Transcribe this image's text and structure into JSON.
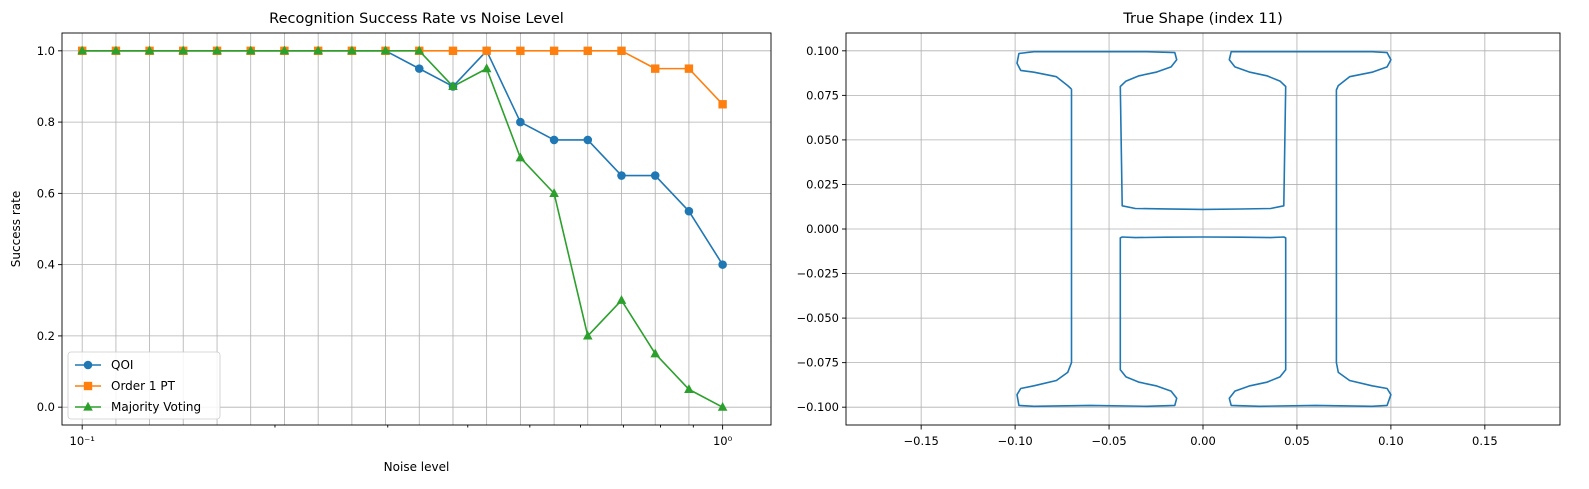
{
  "chart_data": [
    {
      "type": "line",
      "title": "Recognition Success Rate vs Noise Level",
      "xlabel": "Noise level",
      "ylabel": "Success rate",
      "xscale": "log",
      "xlim": [
        0.093,
        1.19
      ],
      "ylim": [
        -0.05,
        1.05
      ],
      "grid": true,
      "legend_position": "lower-left",
      "x": [
        0.1,
        0.1129,
        0.1274,
        0.1438,
        0.1624,
        0.1833,
        0.2069,
        0.2336,
        0.2637,
        0.2976,
        0.336,
        0.3793,
        0.4281,
        0.4833,
        0.5456,
        0.6158,
        0.6952,
        0.7848,
        0.8859,
        1.0
      ],
      "series": [
        {
          "name": "QOI",
          "color": "#1f77b4",
          "marker": "circle",
          "values": [
            1.0,
            1.0,
            1.0,
            1.0,
            1.0,
            1.0,
            1.0,
            1.0,
            1.0,
            1.0,
            0.95,
            0.9,
            1.0,
            0.8,
            0.75,
            0.75,
            0.65,
            0.65,
            0.55,
            0.4
          ]
        },
        {
          "name": "Order 1 PT",
          "color": "#ff7f0e",
          "marker": "square",
          "values": [
            1.0,
            1.0,
            1.0,
            1.0,
            1.0,
            1.0,
            1.0,
            1.0,
            1.0,
            1.0,
            1.0,
            1.0,
            1.0,
            1.0,
            1.0,
            1.0,
            1.0,
            0.95,
            0.95,
            0.85
          ]
        },
        {
          "name": "Majority Voting",
          "color": "#2ca02c",
          "marker": "triangle",
          "values": [
            1.0,
            1.0,
            1.0,
            1.0,
            1.0,
            1.0,
            1.0,
            1.0,
            1.0,
            1.0,
            1.0,
            0.9,
            0.95,
            0.7,
            0.6,
            0.2,
            0.3,
            0.15,
            0.05,
            0.0
          ]
        }
      ],
      "xticks": [
        0.1,
        1.0
      ],
      "xtick_labels": [
        "10⁻¹",
        "10⁰"
      ],
      "yticks": [
        0.0,
        0.2,
        0.4,
        0.6,
        0.8,
        1.0
      ],
      "ytick_labels": [
        "0.0",
        "0.2",
        "0.4",
        "0.6",
        "0.8",
        "1.0"
      ]
    },
    {
      "type": "line",
      "title": "True Shape (index 11)",
      "xlabel": "",
      "ylabel": "",
      "xlim": [
        -0.19,
        0.19
      ],
      "ylim": [
        -0.11,
        0.11
      ],
      "grid": true,
      "xticks": [
        -0.15,
        -0.1,
        -0.05,
        0.0,
        0.05,
        0.1,
        0.15
      ],
      "xtick_labels": [
        "−0.15",
        "−0.10",
        "−0.05",
        "0.00",
        "0.05",
        "0.10",
        "0.15"
      ],
      "yticks": [
        0.1,
        0.075,
        0.05,
        0.025,
        0.0,
        -0.025,
        -0.05,
        -0.075,
        -0.1
      ],
      "ytick_labels": [
        "0.100",
        "0.075",
        "0.050",
        "0.025",
        "0.000",
        "−0.025",
        "−0.050",
        "−0.075",
        "−0.100"
      ],
      "series": [
        {
          "color": "#1f77b4",
          "x": [
            -0.07,
            -0.072,
            -0.078,
            -0.09,
            -0.097,
            -0.099,
            -0.098,
            -0.09,
            -0.06,
            -0.03,
            -0.015,
            -0.014,
            -0.017,
            -0.025,
            -0.034,
            -0.041,
            -0.044,
            -0.043,
            -0.036,
            -0.02,
            0.0,
            0.02,
            0.036,
            0.043,
            0.044,
            0.041,
            0.034,
            0.025,
            0.017,
            0.014,
            0.015,
            0.03,
            0.06,
            0.09,
            0.098,
            0.1,
            0.098,
            0.09,
            0.078,
            0.072,
            0.071,
            0.071,
            0.072,
            0.078,
            0.09,
            0.098,
            0.1,
            0.098,
            0.09,
            0.06,
            0.03,
            0.015,
            0.014,
            0.017,
            0.025,
            0.034,
            0.041,
            0.044,
            0.044,
            0.043,
            0.036,
            0.02,
            0.0,
            -0.02,
            -0.036,
            -0.043,
            -0.044,
            -0.044,
            -0.041,
            -0.034,
            -0.025,
            -0.017,
            -0.014,
            -0.015,
            -0.03,
            -0.06,
            -0.09,
            -0.098,
            -0.099,
            -0.097,
            -0.09,
            -0.078,
            -0.072,
            -0.07,
            -0.07
          ],
          "y": [
            0.0785,
            0.0805,
            0.0855,
            0.088,
            0.089,
            0.093,
            0.0985,
            0.0995,
            0.0995,
            0.0995,
            0.099,
            0.095,
            0.091,
            0.088,
            0.086,
            0.083,
            0.08,
            0.013,
            0.0115,
            0.0113,
            0.011,
            0.0112,
            0.0115,
            0.013,
            0.08,
            0.083,
            0.086,
            0.088,
            0.091,
            0.095,
            0.0995,
            0.0995,
            0.0995,
            0.0995,
            0.099,
            0.095,
            0.091,
            0.088,
            0.0855,
            0.0805,
            0.078,
            -0.075,
            -0.0805,
            -0.085,
            -0.088,
            -0.0895,
            -0.093,
            -0.099,
            -0.0995,
            -0.099,
            -0.0995,
            -0.099,
            -0.095,
            -0.091,
            -0.088,
            -0.086,
            -0.083,
            -0.079,
            -0.005,
            -0.0045,
            -0.0048,
            -0.0046,
            -0.0045,
            -0.0046,
            -0.0048,
            -0.0045,
            -0.005,
            -0.079,
            -0.083,
            -0.086,
            -0.088,
            -0.091,
            -0.095,
            -0.099,
            -0.0995,
            -0.099,
            -0.0995,
            -0.099,
            -0.093,
            -0.0895,
            -0.088,
            -0.085,
            -0.0805,
            -0.075,
            0.0785
          ]
        }
      ]
    }
  ]
}
